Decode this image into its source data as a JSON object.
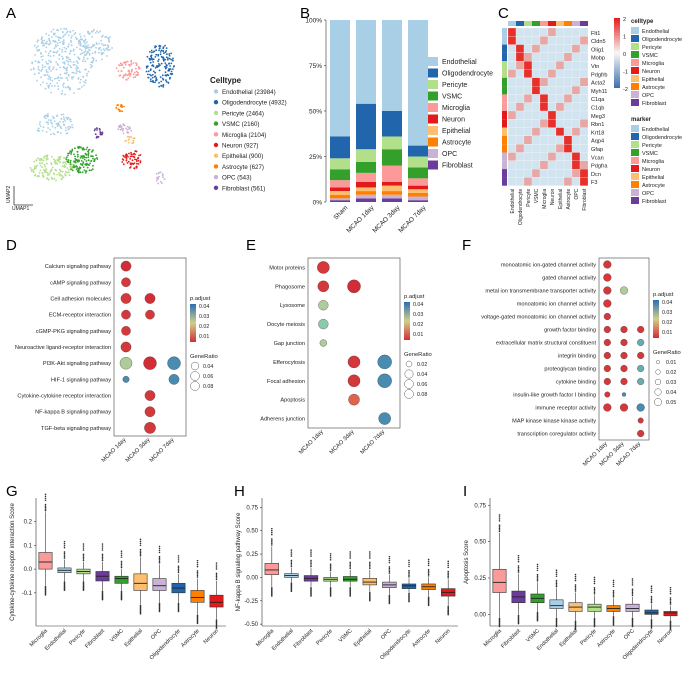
{
  "panels": {
    "A": "A",
    "B": "B",
    "C": "C",
    "D": "D",
    "E": "E",
    "F": "F",
    "G": "G",
    "H": "H",
    "I": "I"
  },
  "palette": {
    "Endothelial": "#a8cfe6",
    "Oligodendrocyte": "#2166ac",
    "Pericyte": "#b2df8a",
    "VSMC": "#33a02c",
    "Microglia": "#fb9a99",
    "Neuron": "#e31a1c",
    "Epithelial": "#fdbf6f",
    "Astrocyte": "#ff7f00",
    "OPC": "#cab2d6",
    "Fibroblast": "#6a3d9a"
  },
  "panel_a": {
    "legend_title": "Celltype",
    "legend": [
      {
        "label": "Endothelial (23984)",
        "color": "#a8cfe6"
      },
      {
        "label": "Oligodendrocyte (4932)",
        "color": "#2166ac"
      },
      {
        "label": "Pericyte (2464)",
        "color": "#b2df8a"
      },
      {
        "label": "VSMC (2160)",
        "color": "#33a02c"
      },
      {
        "label": "Microglia (2104)",
        "color": "#fb9a99"
      },
      {
        "label": "Neuron (927)",
        "color": "#e31a1c"
      },
      {
        "label": "Epithelial (900)",
        "color": "#fdbf6f"
      },
      {
        "label": "Astrocyte (627)",
        "color": "#ff7f00"
      },
      {
        "label": "OPC (543)",
        "color": "#cab2d6"
      },
      {
        "label": "Fibroblast (561)",
        "color": "#6a3d9a"
      }
    ],
    "xlabel": "UMAP1",
    "ylabel": "UMAP2"
  },
  "chart_data": [
    {
      "type": "bar",
      "panel": "B",
      "stacked": true,
      "categories": [
        "Sham",
        "MCAO 1day",
        "MCAO 3day",
        "MCAO 7day"
      ],
      "yticks": [
        "0%",
        "25%",
        "50%",
        "75%",
        "100%"
      ],
      "ylim": [
        0,
        100
      ],
      "series": [
        {
          "name": "Fibroblast",
          "values": [
            1,
            2,
            2,
            1
          ]
        },
        {
          "name": "OPC",
          "values": [
            1,
            2,
            2,
            2
          ]
        },
        {
          "name": "Astrocyte",
          "values": [
            2,
            2,
            2,
            2
          ]
        },
        {
          "name": "Epithelial",
          "values": [
            2,
            2,
            3,
            2
          ]
        },
        {
          "name": "Neuron",
          "values": [
            2,
            3,
            2,
            2
          ]
        },
        {
          "name": "Microglia",
          "values": [
            4,
            5,
            9,
            4
          ]
        },
        {
          "name": "VSMC",
          "values": [
            6,
            6,
            9,
            6
          ]
        },
        {
          "name": "Pericyte",
          "values": [
            6,
            7,
            7,
            6
          ]
        },
        {
          "name": "Oligodendrocyte",
          "values": [
            12,
            25,
            14,
            6
          ]
        },
        {
          "name": "Endothelial",
          "values": [
            64,
            46,
            50,
            69
          ]
        }
      ]
    },
    {
      "type": "heatmap",
      "panel": "C",
      "genes": [
        "Flt1",
        "Cldn5",
        "Olig1",
        "Mobp",
        "Vtn",
        "Pdgfrb",
        "Acta2",
        "Myh11",
        "C1qa",
        "C1qb",
        "Meg3",
        "Rbn1",
        "Krt18",
        "Aqp4",
        "Gfap",
        "Vcan",
        "Pdgfra",
        "Dcn",
        "F3"
      ],
      "cells": [
        "Endothelial",
        "Oligodendrocyte",
        "Pericyte",
        "VSMC",
        "Microglia",
        "Neuron",
        "Epithelial",
        "Astrocyte",
        "OPC",
        "Fibroblast"
      ],
      "scale_ticks": [
        "2",
        "1",
        "0",
        "-1",
        "-2"
      ],
      "legend_celltype_title": "celltype",
      "legend_marker_title": "marker"
    },
    {
      "type": "scatter",
      "panel": "D",
      "categories": [
        "MCAO 1day",
        "MCAO 3day",
        "MCAO 7day"
      ],
      "terms": [
        "Calcium signaling pathway",
        "cAMP signaling pathway",
        "Cell adhesion molecules",
        "ECM-receptor interaction",
        "cGMP-PKG signaling pathway",
        "Neuroactive ligand-receptor interaction",
        "PI3K-Akt signaling pathway",
        "HIF-1 signaling pathway",
        "Cytokine-cytokine receptor interaction",
        "NF-kappa B signaling pathway",
        "TGF-beta signaling pathway"
      ],
      "points": [
        {
          "term": 0,
          "x": 0,
          "size": 0.05,
          "padj": 0.005
        },
        {
          "term": 1,
          "x": 0,
          "size": 0.04,
          "padj": 0.006
        },
        {
          "term": 2,
          "x": 0,
          "size": 0.05,
          "padj": 0.006
        },
        {
          "term": 2,
          "x": 1,
          "size": 0.05,
          "padj": 0.005
        },
        {
          "term": 3,
          "x": 0,
          "size": 0.04,
          "padj": 0.006
        },
        {
          "term": 3,
          "x": 1,
          "size": 0.04,
          "padj": 0.006
        },
        {
          "term": 4,
          "x": 0,
          "size": 0.04,
          "padj": 0.006
        },
        {
          "term": 5,
          "x": 0,
          "size": 0.05,
          "padj": 0.006
        },
        {
          "term": 6,
          "x": 0,
          "size": 0.07,
          "padj": 0.03
        },
        {
          "term": 6,
          "x": 1,
          "size": 0.08,
          "padj": 0.005
        },
        {
          "term": 6,
          "x": 2,
          "size": 0.08,
          "padj": 0.045
        },
        {
          "term": 7,
          "x": 0,
          "size": 0.02,
          "padj": 0.045
        },
        {
          "term": 7,
          "x": 2,
          "size": 0.05,
          "padj": 0.045
        },
        {
          "term": 8,
          "x": 1,
          "size": 0.05,
          "padj": 0.006
        },
        {
          "term": 9,
          "x": 1,
          "size": 0.05,
          "padj": 0.006
        },
        {
          "term": 10,
          "x": 1,
          "size": 0.06,
          "padj": 0.006
        }
      ],
      "padj_title": "p.adjust",
      "padj_ticks": [
        "0.04",
        "0.03",
        "0.02",
        "0.01"
      ],
      "size_title": "GeneRatio",
      "size_ticks": [
        "0.04",
        "0.06",
        "0.08"
      ]
    },
    {
      "type": "scatter",
      "panel": "E",
      "categories": [
        "MCAO 1day",
        "MCAO 3day",
        "MCAO 7day"
      ],
      "terms": [
        "Motor proteins",
        "Phagosome",
        "Lysosome",
        "Oocyte meiosis",
        "Gap junction",
        "Efferocytosis",
        "Focal adhesion",
        "Apoptosis",
        "Adherens junction"
      ],
      "points": [
        {
          "term": 0,
          "x": 0,
          "size": 0.06,
          "padj": 0.006
        },
        {
          "term": 1,
          "x": 0,
          "size": 0.05,
          "padj": 0.006
        },
        {
          "term": 1,
          "x": 1,
          "size": 0.07,
          "padj": 0.005
        },
        {
          "term": 2,
          "x": 0,
          "size": 0.04,
          "padj": 0.03
        },
        {
          "term": 3,
          "x": 0,
          "size": 0.04,
          "padj": 0.035
        },
        {
          "term": 4,
          "x": 0,
          "size": 0.02,
          "padj": 0.03
        },
        {
          "term": 5,
          "x": 1,
          "size": 0.06,
          "padj": 0.006
        },
        {
          "term": 5,
          "x": 2,
          "size": 0.08,
          "padj": 0.045
        },
        {
          "term": 6,
          "x": 1,
          "size": 0.06,
          "padj": 0.006
        },
        {
          "term": 6,
          "x": 2,
          "size": 0.08,
          "padj": 0.045
        },
        {
          "term": 7,
          "x": 1,
          "size": 0.05,
          "padj": 0.01
        },
        {
          "term": 8,
          "x": 2,
          "size": 0.06,
          "padj": 0.045
        }
      ],
      "padj_title": "p.adjust",
      "padj_ticks": [
        "0.04",
        "0.03",
        "0.02",
        "0.01"
      ],
      "size_title": "GeneRatio",
      "size_ticks": [
        "0.02",
        "0.04",
        "0.06",
        "0.08"
      ]
    },
    {
      "type": "scatter",
      "panel": "F",
      "categories": [
        "MCAO 1day",
        "MCAO 3day",
        "MCAO 7day"
      ],
      "terms": [
        "monoatomic ion-gated channel activity",
        "gated channel activity",
        "metal ion transmembrane transporter activity",
        "monoatomic ion channel activity",
        "voltage-gated monoatomic ion channel activity",
        "growth factor binding",
        "extracellular matrix structural constituent",
        "integrin binding",
        "proteoglycan binding",
        "cytokine binding",
        "insulin-like growth factor I binding",
        "immune receptor activity",
        "MAP kinase kinase kinase activity",
        "transcription coregulator activity"
      ],
      "points": [
        {
          "term": 0,
          "x": 0,
          "size": 0.04,
          "padj": 0.006
        },
        {
          "term": 1,
          "x": 0,
          "size": 0.04,
          "padj": 0.006
        },
        {
          "term": 2,
          "x": 0,
          "size": 0.04,
          "padj": 0.006
        },
        {
          "term": 2,
          "x": 1,
          "size": 0.04,
          "padj": 0.03
        },
        {
          "term": 3,
          "x": 0,
          "size": 0.04,
          "padj": 0.006
        },
        {
          "term": 4,
          "x": 0,
          "size": 0.03,
          "padj": 0.006
        },
        {
          "term": 5,
          "x": 0,
          "size": 0.03,
          "padj": 0.006
        },
        {
          "term": 5,
          "x": 1,
          "size": 0.03,
          "padj": 0.006
        },
        {
          "term": 5,
          "x": 2,
          "size": 0.03,
          "padj": 0.006
        },
        {
          "term": 6,
          "x": 0,
          "size": 0.03,
          "padj": 0.006
        },
        {
          "term": 6,
          "x": 1,
          "size": 0.03,
          "padj": 0.006
        },
        {
          "term": 6,
          "x": 2,
          "size": 0.03,
          "padj": 0.04
        },
        {
          "term": 7,
          "x": 0,
          "size": 0.03,
          "padj": 0.006
        },
        {
          "term": 7,
          "x": 1,
          "size": 0.03,
          "padj": 0.006
        },
        {
          "term": 7,
          "x": 2,
          "size": 0.03,
          "padj": 0.006
        },
        {
          "term": 8,
          "x": 0,
          "size": 0.03,
          "padj": 0.006
        },
        {
          "term": 8,
          "x": 1,
          "size": 0.03,
          "padj": 0.006
        },
        {
          "term": 8,
          "x": 2,
          "size": 0.03,
          "padj": 0.04
        },
        {
          "term": 9,
          "x": 0,
          "size": 0.03,
          "padj": 0.006
        },
        {
          "term": 9,
          "x": 1,
          "size": 0.03,
          "padj": 0.006
        },
        {
          "term": 9,
          "x": 2,
          "size": 0.03,
          "padj": 0.04
        },
        {
          "term": 10,
          "x": 0,
          "size": 0.02,
          "padj": 0.006
        },
        {
          "term": 10,
          "x": 1,
          "size": 0.01,
          "padj": 0.045
        },
        {
          "term": 11,
          "x": 0,
          "size": 0.04,
          "padj": 0.006
        },
        {
          "term": 11,
          "x": 1,
          "size": 0.04,
          "padj": 0.006
        },
        {
          "term": 11,
          "x": 2,
          "size": 0.04,
          "padj": 0.045
        },
        {
          "term": 12,
          "x": 2,
          "size": 0.02,
          "padj": 0.006
        },
        {
          "term": 13,
          "x": 2,
          "size": 0.03,
          "padj": 0.006
        }
      ],
      "padj_title": "p.adjust",
      "padj_ticks": [
        "0.04",
        "0.03",
        "0.02",
        "0.01"
      ],
      "size_title": "GeneRatio",
      "size_ticks": [
        "0.01",
        "0.02",
        "0.03",
        "0.04",
        "0.05"
      ]
    },
    {
      "type": "box",
      "panel": "G",
      "ylabel": "Cytokine-cytokine receptor interaction Score",
      "yticks": [
        "0.2",
        "0.1",
        "0.0",
        "-0.1"
      ],
      "ylim": [
        -0.24,
        0.3
      ],
      "categories": [
        "Microglia",
        "Endothelial",
        "Pericyte",
        "Fibroblast",
        "VSMC",
        "Epithelial",
        "OPC",
        "Oligodendrocyte",
        "Astrocyte",
        "Neuron"
      ],
      "boxes": [
        {
          "q1": 0.0,
          "med": 0.03,
          "q3": 0.07,
          "lo": -0.07,
          "hi": 0.24,
          "color": "#fb9a99"
        },
        {
          "q1": -0.015,
          "med": -0.005,
          "q3": 0.005,
          "lo": -0.05,
          "hi": 0.04,
          "color": "#a8cfe6"
        },
        {
          "q1": -0.02,
          "med": -0.01,
          "q3": 0.0,
          "lo": -0.05,
          "hi": 0.03,
          "color": "#b2df8a"
        },
        {
          "q1": -0.05,
          "med": -0.03,
          "q3": -0.01,
          "lo": -0.09,
          "hi": 0.03,
          "color": "#6a3d9a"
        },
        {
          "q1": -0.06,
          "med": -0.04,
          "q3": -0.03,
          "lo": -0.09,
          "hi": 0.0,
          "color": "#33a02c"
        },
        {
          "q1": -0.09,
          "med": -0.06,
          "q3": -0.02,
          "lo": -0.15,
          "hi": 0.05,
          "color": "#fdbf6f"
        },
        {
          "q1": -0.09,
          "med": -0.07,
          "q3": -0.04,
          "lo": -0.14,
          "hi": 0.02,
          "color": "#cab2d6"
        },
        {
          "q1": -0.1,
          "med": -0.08,
          "q3": -0.06,
          "lo": -0.14,
          "hi": -0.02,
          "color": "#2166ac"
        },
        {
          "q1": -0.14,
          "med": -0.12,
          "q3": -0.09,
          "lo": -0.19,
          "hi": -0.04,
          "color": "#ff7f00"
        },
        {
          "q1": -0.16,
          "med": -0.14,
          "q3": -0.11,
          "lo": -0.21,
          "hi": -0.05,
          "color": "#e31a1c"
        }
      ]
    },
    {
      "type": "box",
      "panel": "H",
      "ylabel": "NF-kappa B signaling pathway Score",
      "yticks": [
        "0.75",
        "0.50",
        "0.25",
        "0.00",
        "-0.25",
        "-0.50"
      ],
      "ylim": [
        -0.52,
        0.85
      ],
      "categories": [
        "Microglia",
        "Endothelial",
        "Fibroblast",
        "Pericyte",
        "VSMC",
        "Epithelial",
        "OPC",
        "Oligodendrocyte",
        "Astrocyte",
        "Neuron"
      ],
      "boxes": [
        {
          "q1": 0.03,
          "med": 0.08,
          "q3": 0.15,
          "lo": -0.1,
          "hi": 0.33,
          "color": "#fb9a99"
        },
        {
          "q1": 0.0,
          "med": 0.02,
          "q3": 0.04,
          "lo": -0.05,
          "hi": 0.1,
          "color": "#a8cfe6"
        },
        {
          "q1": -0.04,
          "med": -0.01,
          "q3": 0.02,
          "lo": -0.1,
          "hi": 0.1,
          "color": "#6a3d9a"
        },
        {
          "q1": -0.04,
          "med": -0.02,
          "q3": 0.0,
          "lo": -0.1,
          "hi": 0.06,
          "color": "#b2df8a"
        },
        {
          "q1": -0.04,
          "med": -0.02,
          "q3": 0.01,
          "lo": -0.1,
          "hi": 0.08,
          "color": "#33a02c"
        },
        {
          "q1": -0.08,
          "med": -0.05,
          "q3": -0.01,
          "lo": -0.15,
          "hi": 0.08,
          "color": "#fdbf6f"
        },
        {
          "q1": -0.11,
          "med": -0.08,
          "q3": -0.05,
          "lo": -0.18,
          "hi": 0.03,
          "color": "#cab2d6"
        },
        {
          "q1": -0.12,
          "med": -0.09,
          "q3": -0.07,
          "lo": -0.16,
          "hi": -0.01,
          "color": "#2166ac"
        },
        {
          "q1": -0.13,
          "med": -0.1,
          "q3": -0.07,
          "lo": -0.2,
          "hi": 0.0,
          "color": "#ff7f00"
        },
        {
          "q1": -0.2,
          "med": -0.16,
          "q3": -0.12,
          "lo": -0.3,
          "hi": -0.02,
          "color": "#e31a1c"
        }
      ]
    },
    {
      "type": "box",
      "panel": "I",
      "ylabel": "Apoptosis Score",
      "yticks": [
        "0.75",
        "0.50",
        "0.25",
        "0.00"
      ],
      "ylim": [
        -0.08,
        0.8
      ],
      "categories": [
        "Microglia",
        "Fibroblast",
        "VSMC",
        "Endothelial",
        "Epithelial",
        "Pericyte",
        "Astrocyte",
        "OPC",
        "Oligodendrocyte",
        "Neuron"
      ],
      "boxes": [
        {
          "q1": 0.15,
          "med": 0.22,
          "q3": 0.31,
          "lo": -0.02,
          "hi": 0.56,
          "color": "#fb9a99"
        },
        {
          "q1": 0.08,
          "med": 0.12,
          "q3": 0.16,
          "lo": 0.0,
          "hi": 0.28,
          "color": "#6a3d9a"
        },
        {
          "q1": 0.08,
          "med": 0.11,
          "q3": 0.14,
          "lo": 0.02,
          "hi": 0.22,
          "color": "#33a02c"
        },
        {
          "q1": 0.04,
          "med": 0.06,
          "q3": 0.1,
          "lo": -0.02,
          "hi": 0.18,
          "color": "#a8cfe6"
        },
        {
          "q1": 0.02,
          "med": 0.05,
          "q3": 0.08,
          "lo": -0.04,
          "hi": 0.15,
          "color": "#fdbf6f"
        },
        {
          "q1": 0.02,
          "med": 0.05,
          "q3": 0.07,
          "lo": -0.02,
          "hi": 0.13,
          "color": "#b2df8a"
        },
        {
          "q1": 0.02,
          "med": 0.04,
          "q3": 0.06,
          "lo": -0.01,
          "hi": 0.11,
          "color": "#ff7f00"
        },
        {
          "q1": 0.02,
          "med": 0.04,
          "q3": 0.07,
          "lo": -0.02,
          "hi": 0.12,
          "color": "#cab2d6"
        },
        {
          "q1": 0.0,
          "med": 0.01,
          "q3": 0.03,
          "lo": -0.03,
          "hi": 0.07,
          "color": "#2166ac"
        },
        {
          "q1": -0.01,
          "med": 0.01,
          "q3": 0.02,
          "lo": -0.04,
          "hi": 0.06,
          "color": "#e31a1c"
        }
      ]
    }
  ]
}
